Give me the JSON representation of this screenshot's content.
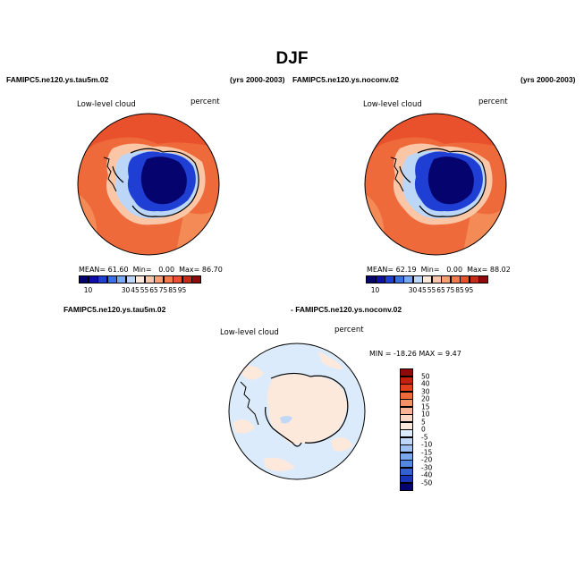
{
  "figure": {
    "title": "DJF"
  },
  "panels": [
    {
      "case_name": "FAMIPC5.ne120.ys.tau5m.02",
      "years": "(yrs 2000-2003)",
      "variable": "Low-level cloud",
      "units": "percent",
      "stats": {
        "mean_label": "MEAN=",
        "mean": "61.60",
        "min_label": "Min=",
        "min": "0.00",
        "max_label": "Max=",
        "max": "86.70"
      }
    },
    {
      "case_name": "FAMIPC5.ne120.ys.noconv.02",
      "years": "(yrs 2000-2003)",
      "variable": "Low-level cloud",
      "units": "percent",
      "stats": {
        "mean_label": "MEAN=",
        "mean": "62.19",
        "min_label": "Min=",
        "min": "0.00",
        "max_label": "Max=",
        "max": "88.02"
      }
    }
  ],
  "difference_panel": {
    "case_a": "FAMIPC5.ne120.ys.tau5m.02",
    "case_b": "- FAMIPC5.ne120.ys.noconv.02",
    "variable": "Low-level cloud",
    "units": "percent",
    "minmax_text": "MIN = -18.26  MAX =    9.47"
  },
  "colorbar_main": {
    "colors": [
      "#05036e",
      "#0e0fa6",
      "#1f3fd4",
      "#3a6fe8",
      "#7aa7f2",
      "#bcd6f7",
      "#fde9dc",
      "#fbc6a6",
      "#f8a074",
      "#f37a4c",
      "#e9502c",
      "#c92a18",
      "#8f0a0a"
    ],
    "labels": [
      "10",
      "30",
      "45",
      "55",
      "65",
      "75",
      "85",
      "95"
    ]
  },
  "colorbar_diff": {
    "colors": [
      "#8f0a0a",
      "#c42010",
      "#e0401c",
      "#ef6a3a",
      "#f4916a",
      "#f7b497",
      "#fbd8c6",
      "#fde9dc",
      "#dcebfb",
      "#bfd8f7",
      "#9ec0f2",
      "#7aa7ec",
      "#5587e2",
      "#3460d4",
      "#1a35b8",
      "#05036e"
    ],
    "labels": [
      "50",
      "40",
      "30",
      "20",
      "15",
      "10",
      "5",
      "0",
      "-5",
      "-10",
      "-15",
      "-20",
      "-30",
      "-40",
      "-50"
    ]
  }
}
